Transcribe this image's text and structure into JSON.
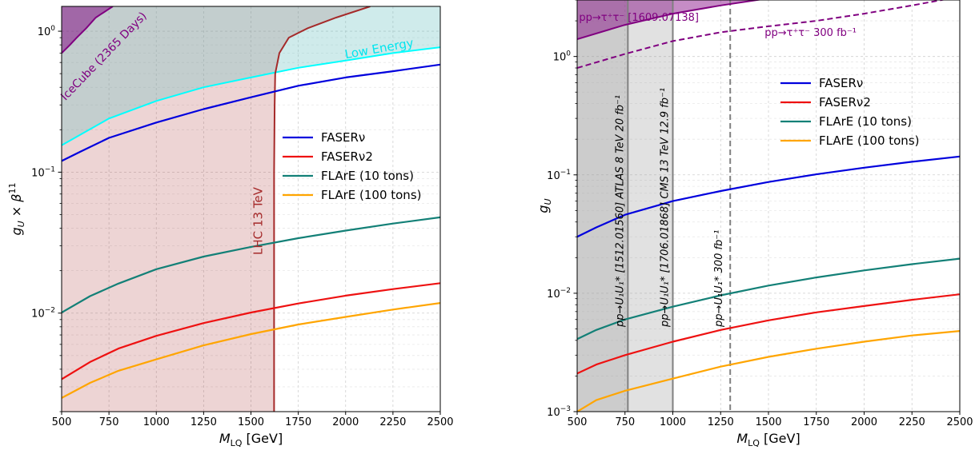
{
  "chart_data": [
    {
      "type": "line",
      "ylabel": "g_U × β^11",
      "ylabel_parts": {
        "main": "g",
        "sub": "U",
        "mid": " × β",
        "sup": "11"
      },
      "xlabel_parts": {
        "main": "M",
        "sub": "LQ",
        "tail": " [GeV]"
      },
      "xlim": [
        500,
        2500
      ],
      "ylim": [
        0.002,
        1.5
      ],
      "yscale": "log",
      "grid": true,
      "legend_position": "center-right",
      "xticks": [
        500,
        750,
        1000,
        1250,
        1500,
        1750,
        2000,
        2250,
        2500
      ],
      "xtick_labels": [
        "500",
        "750",
        "1000",
        "1250",
        "1500",
        "1750",
        "2000",
        "2250",
        "2500"
      ],
      "yticks": [
        {
          "value": 0.01,
          "base": "10",
          "exp": "−2"
        },
        {
          "value": 0.1,
          "base": "10",
          "exp": "−1"
        },
        {
          "value": 1,
          "base": "10",
          "exp": "0"
        }
      ],
      "series": [
        {
          "name": "FASERν",
          "color": "#0000dd",
          "x": [
            500,
            600,
            750,
            1000,
            1250,
            1500,
            1750,
            2000,
            2250,
            2500
          ],
          "y": [
            0.12,
            0.14,
            0.175,
            0.225,
            0.28,
            0.34,
            0.41,
            0.47,
            0.52,
            0.58
          ]
        },
        {
          "name": "FASERν2",
          "color": "#ee1111",
          "x": [
            500,
            650,
            800,
            1000,
            1250,
            1500,
            1750,
            2000,
            2250,
            2500
          ],
          "y": [
            0.0034,
            0.0045,
            0.0056,
            0.0069,
            0.0085,
            0.0101,
            0.0117,
            0.0133,
            0.0148,
            0.0163
          ]
        },
        {
          "name": "FLArE (10 tons)",
          "color": "#138077",
          "x": [
            500,
            650,
            800,
            1000,
            1250,
            1500,
            1750,
            2000,
            2250,
            2500
          ],
          "y": [
            0.0101,
            0.0132,
            0.0162,
            0.0205,
            0.0252,
            0.0295,
            0.034,
            0.0385,
            0.0432,
            0.0478
          ]
        },
        {
          "name": "FLArE (100 tons)",
          "color": "#ffa500",
          "x": [
            500,
            650,
            800,
            1000,
            1250,
            1500,
            1750,
            2000,
            2250,
            2500
          ],
          "y": [
            0.0025,
            0.0032,
            0.0039,
            0.0047,
            0.0059,
            0.0071,
            0.0083,
            0.0094,
            0.0106,
            0.0118
          ]
        }
      ],
      "regions": [
        {
          "name": "LHC 13 TeV",
          "label_color": "#a52a2a",
          "fill": "#a52a2a",
          "opacity": 0.2,
          "boundary_x": [
            1622,
            1622,
            1625,
            1628,
            1650,
            1700,
            1800,
            1950,
            2130
          ],
          "boundary_y": [
            0.002,
            0.1,
            0.3,
            0.5,
            0.7,
            0.9,
            1.05,
            1.25,
            1.5
          ]
        },
        {
          "name": "Low Energy",
          "label_color": "#00e5ee",
          "fill": "#00ffff",
          "opacity": 0.12,
          "line_color": "#00ffff",
          "boundary_x": [
            500,
            750,
            1000,
            1250,
            1500,
            1750,
            2000,
            2250,
            2500
          ],
          "boundary_y": [
            0.155,
            0.24,
            0.32,
            0.4,
            0.47,
            0.55,
            0.62,
            0.7,
            0.77
          ]
        },
        {
          "name": "IceCube (2365 Days)",
          "label_color": "#800080",
          "fill": "#800080",
          "opacity": 0.5,
          "line_color": "#800080",
          "boundary_x": [
            500,
            540,
            580,
            630,
            680,
            770
          ],
          "boundary_y": [
            0.7,
            0.79,
            0.9,
            1.05,
            1.25,
            1.5
          ]
        }
      ]
    },
    {
      "type": "line",
      "ylabel": "g_U",
      "ylabel_parts": {
        "main": "g",
        "sub": "U"
      },
      "xlabel_parts": {
        "main": "M",
        "sub": "LQ",
        "tail": " [GeV]"
      },
      "xlim": [
        500,
        2500
      ],
      "ylim": [
        0.001,
        3
      ],
      "yscale": "log",
      "grid": true,
      "legend_position": "upper-right",
      "xticks": [
        500,
        750,
        1000,
        1250,
        1500,
        1750,
        2000,
        2250,
        2500
      ],
      "xtick_labels": [
        "500",
        "750",
        "1000",
        "1250",
        "1500",
        "1750",
        "2000",
        "2250",
        "2500"
      ],
      "yticks": [
        {
          "value": 0.001,
          "base": "10",
          "exp": "−3"
        },
        {
          "value": 0.01,
          "base": "10",
          "exp": "−2"
        },
        {
          "value": 0.1,
          "base": "10",
          "exp": "−1"
        },
        {
          "value": 1,
          "base": "10",
          "exp": "0"
        }
      ],
      "series": [
        {
          "name": "FASERν",
          "color": "#0000dd",
          "x": [
            500,
            600,
            750,
            1000,
            1250,
            1500,
            1750,
            2000,
            2250,
            2500
          ],
          "y": [
            0.03,
            0.036,
            0.046,
            0.06,
            0.073,
            0.087,
            0.101,
            0.115,
            0.129,
            0.143
          ]
        },
        {
          "name": "FASERν2",
          "color": "#ee1111",
          "x": [
            500,
            600,
            750,
            1000,
            1250,
            1500,
            1750,
            2000,
            2250,
            2500
          ],
          "y": [
            0.0021,
            0.0025,
            0.003,
            0.0039,
            0.0049,
            0.0059,
            0.0069,
            0.0078,
            0.0088,
            0.0098
          ]
        },
        {
          "name": "FLArE (10 tons)",
          "color": "#138077",
          "x": [
            500,
            600,
            750,
            1000,
            1250,
            1500,
            1750,
            2000,
            2250,
            2500
          ],
          "y": [
            0.0041,
            0.0049,
            0.006,
            0.0077,
            0.0096,
            0.0116,
            0.0136,
            0.0156,
            0.0176,
            0.0196
          ]
        },
        {
          "name": "FLArE (100 tons)",
          "color": "#ffa500",
          "x": [
            500,
            600,
            750,
            1000,
            1250,
            1500,
            1750,
            2000,
            2250,
            2500
          ],
          "y": [
            0.001,
            0.00125,
            0.0015,
            0.0019,
            0.0024,
            0.0029,
            0.0034,
            0.0039,
            0.0044,
            0.0048
          ]
        }
      ],
      "vertical_lines": [
        {
          "x": 765,
          "label": "pp→U₁U₁* [1512.01560] ATLAS 8 TeV 20 fb⁻¹",
          "style": "solid",
          "color": "#808080",
          "shade_from": 500,
          "shade_opacity": 0.3
        },
        {
          "x": 1000,
          "label": "pp→U₁U₁* [1706.01868] CMS 13 TeV 12.9 fb⁻¹",
          "style": "solid",
          "color": "#808080",
          "shade_from": 500,
          "shade_opacity": 0.3
        },
        {
          "x": 1300,
          "label": "pp→U₁U₁* 300 fb⁻¹",
          "style": "dashed",
          "color": "#808080"
        }
      ],
      "tau_bounds": [
        {
          "label": "pp→τ⁺τ⁻ [1609.07138]",
          "style": "solid",
          "color": "#800080",
          "fill_above": true,
          "x": [
            500,
            750,
            1000,
            1250,
            1500,
            1750,
            2000
          ],
          "y": [
            1.4,
            1.85,
            2.3,
            2.7,
            3.1,
            3.5,
            3.9
          ]
        },
        {
          "label": "pp→τ⁺τ⁻ 300 fb⁻¹",
          "style": "dashed",
          "color": "#800080",
          "x": [
            500,
            750,
            1000,
            1250,
            1500,
            1750,
            2000,
            2250,
            2500
          ],
          "y": [
            0.8,
            1.05,
            1.35,
            1.6,
            1.8,
            2.0,
            2.3,
            2.7,
            3.2
          ]
        }
      ]
    }
  ]
}
